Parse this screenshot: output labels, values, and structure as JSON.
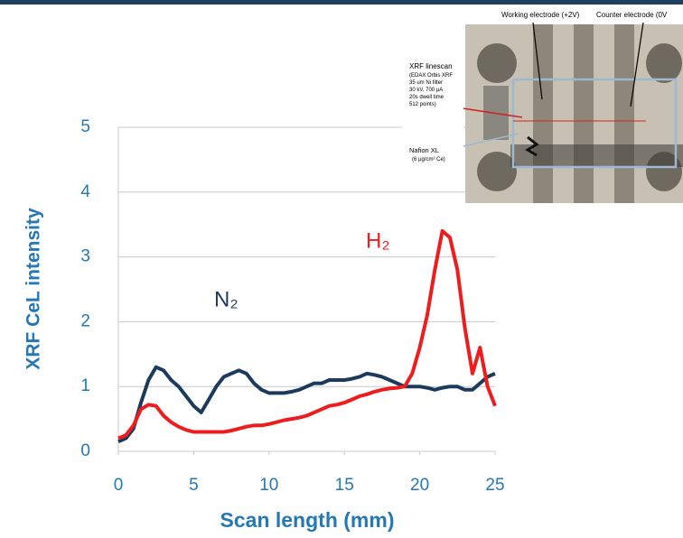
{
  "chart_data": {
    "type": "line",
    "xlabel": "Scan length (mm)",
    "ylabel": "XRF CeL intensity",
    "xlim": [
      0,
      25
    ],
    "ylim": [
      0,
      5
    ],
    "xticks": [
      0,
      5,
      10,
      15,
      20,
      25
    ],
    "yticks": [
      0,
      1,
      2,
      3,
      4,
      5
    ],
    "grid": true,
    "x": [
      0,
      0.5,
      1,
      1.5,
      2,
      2.5,
      3,
      3.5,
      4,
      4.5,
      5,
      5.5,
      6,
      6.5,
      7,
      7.5,
      8,
      8.5,
      9,
      9.5,
      10,
      10.5,
      11,
      11.5,
      12,
      12.5,
      13,
      13.5,
      14,
      14.5,
      15,
      15.5,
      16,
      16.5,
      17,
      17.5,
      18,
      18.5,
      19,
      19.5,
      20,
      20.5,
      21,
      21.5,
      22,
      22.5,
      23,
      23.5,
      24,
      24.5,
      25
    ],
    "series": [
      {
        "name": "N₂",
        "color": "#1b3a5c",
        "values": [
          0.15,
          0.2,
          0.35,
          0.75,
          1.1,
          1.3,
          1.25,
          1.1,
          1.0,
          0.85,
          0.7,
          0.6,
          0.8,
          1.0,
          1.15,
          1.2,
          1.25,
          1.2,
          1.05,
          0.95,
          0.9,
          0.9,
          0.9,
          0.92,
          0.95,
          1.0,
          1.05,
          1.05,
          1.1,
          1.1,
          1.1,
          1.12,
          1.15,
          1.2,
          1.18,
          1.15,
          1.1,
          1.05,
          1.0,
          1.0,
          1.0,
          0.98,
          0.95,
          0.98,
          1.0,
          1.0,
          0.95,
          0.95,
          1.05,
          1.15,
          1.2
        ]
      },
      {
        "name": "H₂",
        "color": "#ee1c1c",
        "values": [
          0.2,
          0.25,
          0.4,
          0.65,
          0.72,
          0.7,
          0.55,
          0.45,
          0.38,
          0.33,
          0.3,
          0.3,
          0.3,
          0.3,
          0.3,
          0.32,
          0.35,
          0.38,
          0.4,
          0.4,
          0.42,
          0.45,
          0.48,
          0.5,
          0.52,
          0.55,
          0.6,
          0.65,
          0.7,
          0.72,
          0.75,
          0.8,
          0.85,
          0.88,
          0.92,
          0.95,
          0.97,
          0.98,
          1.0,
          1.2,
          1.6,
          2.1,
          2.8,
          3.4,
          3.3,
          2.8,
          1.9,
          1.2,
          1.6,
          1.0,
          0.7
        ]
      }
    ],
    "annotations": [
      "Working electrode (+2V)",
      "Counter electrode (0V",
      "XRF linescan",
      "(EDAX Orbis XRF",
      "35 um Ni filter",
      "30 kV, 700 µA",
      "20s dwell time",
      "512 points)",
      "Nafion XL",
      "(6 µg/cm² Ce)"
    ]
  }
}
